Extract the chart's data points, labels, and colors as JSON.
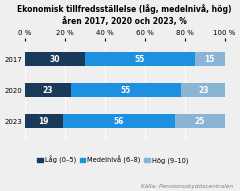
{
  "title_line1": "Ekonomisk tillfredsställelse (låg, medelnivå, hög)",
  "title_line2": "åren 2017, 2020 och 2023, %",
  "years": [
    "2017",
    "2020",
    "2023"
  ],
  "lag": [
    30,
    23,
    19
  ],
  "medel": [
    55,
    55,
    56
  ],
  "hog": [
    15,
    23,
    25
  ],
  "color_lag": "#1a3a5c",
  "color_medel": "#1e90e0",
  "color_hog": "#8ab4d4",
  "legend_lag": "Låg (0–5)",
  "legend_medel": "Medelnivå (6–8)",
  "legend_hog": "Hög (9–10)",
  "source": "Källa: Pensionsskyddscentralen",
  "xlim": [
    0,
    100
  ],
  "xticks": [
    0,
    20,
    40,
    60,
    80,
    100
  ],
  "xtick_labels": [
    "0 %",
    "20 %",
    "40 %",
    "60 %",
    "80 %",
    "100 %"
  ],
  "bar_height": 0.45,
  "title_fontsize": 5.5,
  "tick_fontsize": 5.0,
  "label_fontsize": 5.5,
  "source_fontsize": 4.2,
  "legend_fontsize": 4.8,
  "background_color": "#efefef"
}
